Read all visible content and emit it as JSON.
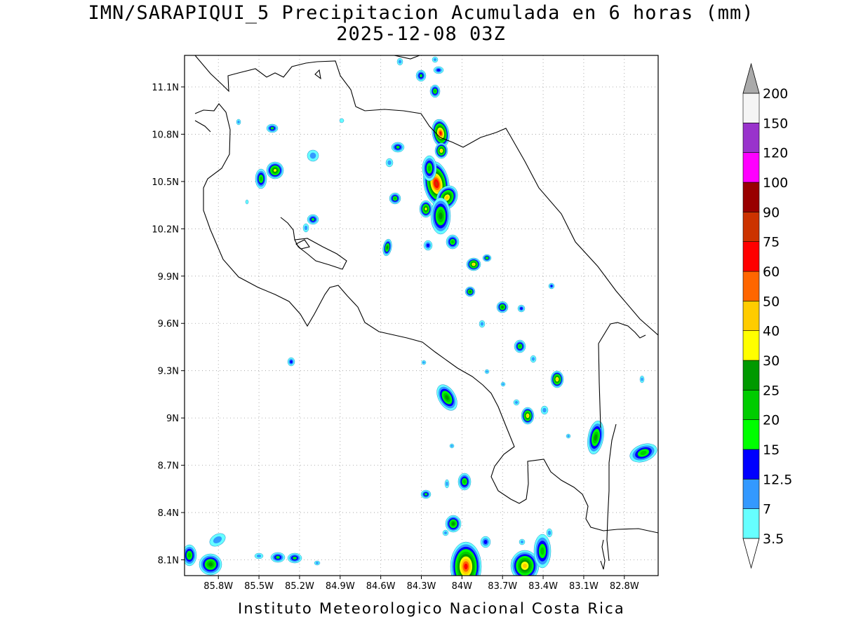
{
  "title_line1": "IMN/SARAPIQUI_5 Precipitacion Acumulada en 6 horas (mm)",
  "title_line2": "2025-12-08 03Z",
  "footer": "Instituto Meteorologico Nacional Costa Rica",
  "map": {
    "lon_range": [
      -86.05,
      -82.55
    ],
    "lat_range": [
      8.0,
      11.3
    ],
    "lat_ticks": [
      "11.1N",
      "10.8N",
      "10.5N",
      "10.2N",
      "9.9N",
      "9.6N",
      "9.3N",
      "9N",
      "8.7N",
      "8.4N",
      "8.1N"
    ],
    "lon_ticks": [
      "85.8W",
      "85.5W",
      "85.2W",
      "84.9W",
      "84.6W",
      "84.3W",
      "84W",
      "83.7W",
      "83.4W",
      "83.1W",
      "82.8W"
    ]
  },
  "colorbar": {
    "labels": [
      "3.5",
      "7",
      "12.5",
      "15",
      "20",
      "25",
      "30",
      "40",
      "50",
      "60",
      "75",
      "90",
      "100",
      "120",
      "150",
      "200"
    ],
    "colors": [
      "#66ffff",
      "#3399ff",
      "#0000ff",
      "#00ff00",
      "#00cc00",
      "#009900",
      "#ffff00",
      "#ffcc00",
      "#ff6600",
      "#ff0000",
      "#cc3300",
      "#990000",
      "#ff00ff",
      "#9933cc",
      "#f5f5f5",
      "#aaaaaa"
    ]
  }
}
